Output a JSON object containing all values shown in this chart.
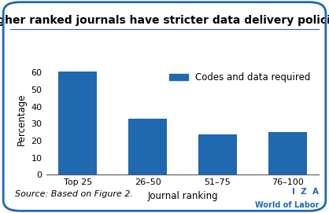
{
  "title": "Higher ranked journals have stricter data delivery policies",
  "categories": [
    "Top 25",
    "26–50",
    "51–75",
    "76–100"
  ],
  "values": [
    60.5,
    33.0,
    23.5,
    25.0
  ],
  "bar_color": "#2068B0",
  "xlabel": "Journal ranking",
  "ylabel": "Percentage",
  "ylim": [
    0,
    65
  ],
  "yticks": [
    0,
    10,
    20,
    30,
    40,
    50,
    60
  ],
  "legend_label": "Codes and data required",
  "source_text": "Source: Based on Figure 2.",
  "iza_line1": "I  Z  A",
  "iza_line2": "World of Labor",
  "background_color": "#ffffff",
  "border_color": "#2068B0",
  "title_fontsize": 10,
  "axis_label_fontsize": 8.5,
  "tick_fontsize": 8,
  "legend_fontsize": 8.5,
  "source_fontsize": 8
}
